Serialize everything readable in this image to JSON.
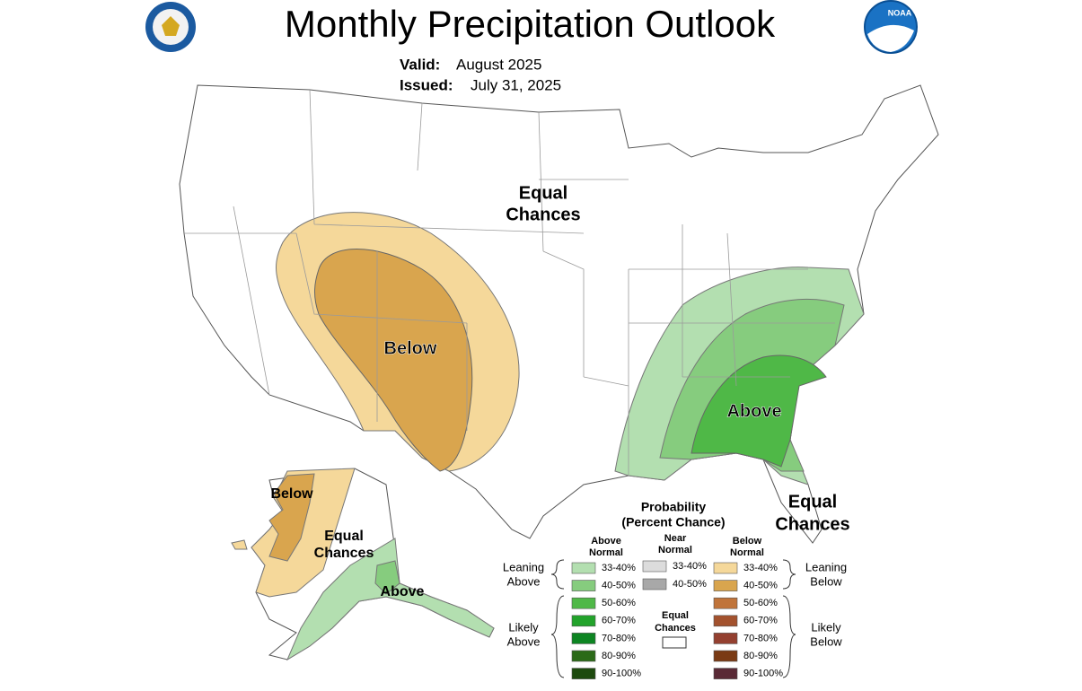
{
  "header": {
    "title": "Monthly Precipitation Outlook",
    "valid_label": "Valid:",
    "valid": "August 2025",
    "issued_label": "Issued:",
    "issued": "July 31, 2025",
    "logo_text": "NOAA"
  },
  "map_labels": [
    {
      "lines": [
        "Equal",
        "Chances"
      ]
    },
    {
      "lines": [
        "Below"
      ]
    },
    {
      "lines": [
        "Above"
      ]
    },
    {
      "lines": [
        "Equal",
        "Chances"
      ]
    },
    {
      "lines": [
        "Below"
      ]
    },
    {
      "lines": [
        "Equal",
        "Chances"
      ]
    },
    {
      "lines": [
        "Above"
      ]
    }
  ],
  "legend": {
    "title": [
      "Probability",
      "(Percent Chance)"
    ],
    "above_header": [
      "Above",
      "Normal"
    ],
    "near_header": [
      "Near",
      "Normal"
    ],
    "below_header": [
      "Below",
      "Normal"
    ],
    "above": [
      {
        "label": "33-40%",
        "color": "#b3dfb0"
      },
      {
        "label": "40-50%",
        "color": "#86cc7e"
      },
      {
        "label": "50-60%",
        "color": "#4fb847"
      },
      {
        "label": "60-70%",
        "color": "#22a32b"
      },
      {
        "label": "70-80%",
        "color": "#0d8522"
      },
      {
        "label": "80-90%",
        "color": "#2b6a18"
      },
      {
        "label": "90-100%",
        "color": "#1d4a0e"
      }
    ],
    "near": [
      {
        "label": "33-40%",
        "color": "#dcdcdc"
      },
      {
        "label": "40-50%",
        "color": "#a8a8a8"
      }
    ],
    "below": [
      {
        "label": "33-40%",
        "color": "#f5d89a"
      },
      {
        "label": "40-50%",
        "color": "#d9a54e"
      },
      {
        "label": "50-60%",
        "color": "#c0743a"
      },
      {
        "label": "60-70%",
        "color": "#a3522e"
      },
      {
        "label": "70-80%",
        "color": "#944030"
      },
      {
        "label": "80-90%",
        "color": "#7a3a14"
      },
      {
        "label": "90-100%",
        "color": "#5a2a36"
      }
    ],
    "equal_chances": [
      "Equal",
      "Chances"
    ],
    "leaning_above": [
      "Leaning",
      "Above"
    ],
    "likely_above": [
      "Likely",
      "Above"
    ],
    "leaning_below": [
      "Leaning",
      "Below"
    ],
    "likely_below": [
      "Likely",
      "Below"
    ]
  }
}
